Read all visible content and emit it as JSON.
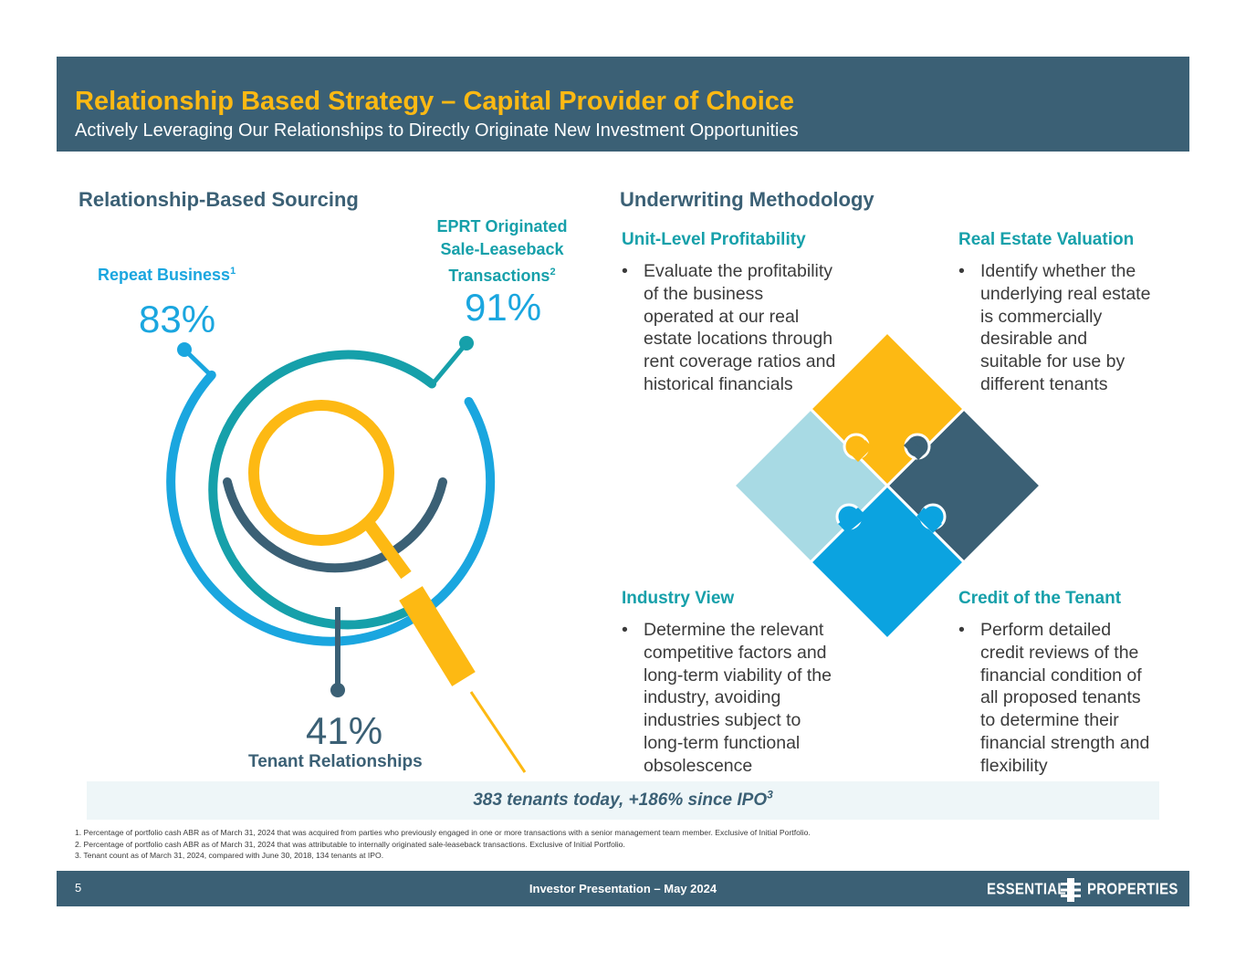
{
  "header": {
    "title": "Relationship Based Strategy – Capital Provider of Choice",
    "subtitle": "Actively Leveraging Our Relationships to Directly Originate New Investment Opportunities"
  },
  "sourcing": {
    "heading": "Relationship-Based Sourcing",
    "repeat": {
      "label": "Repeat Business",
      "sup": "1",
      "value": "83%"
    },
    "eprt": {
      "line1": "EPRT Originated",
      "line2": "Sale-Leaseback",
      "line3": "Transactions",
      "sup": "2",
      "value": "91%"
    },
    "tenant": {
      "value": "41%",
      "label": "Tenant Relationships"
    }
  },
  "underwriting": {
    "heading": "Underwriting Methodology",
    "quadrants": [
      {
        "title": "Unit-Level Profitability",
        "lines": [
          "Evaluate the profitability",
          "of the business",
          "operated at our real",
          "estate locations through",
          "rent coverage ratios and",
          "historical financials"
        ]
      },
      {
        "title": "Real Estate Valuation",
        "lines": [
          "Identify whether the",
          "underlying real estate",
          "is commercially",
          "desirable and",
          "suitable for use by",
          "different tenants"
        ]
      },
      {
        "title": "Industry View",
        "lines": [
          "Determine the relevant",
          "competitive factors and",
          "long-term viability of the",
          "industry, avoiding",
          "industries subject to",
          "long-term functional",
          "obsolescence"
        ]
      },
      {
        "title": "Credit of the Tenant",
        "lines": [
          "Perform detailed",
          "credit reviews of the",
          "financial condition of",
          "all proposed tenants",
          "to determine their",
          "financial strength and",
          "flexibility"
        ]
      }
    ]
  },
  "banner": {
    "text": "383 tenants today, +186% since IPO",
    "sup": "3"
  },
  "footnotes": [
    "1.  Percentage of portfolio cash ABR as of March 31, 2024 that was acquired from parties who previously engaged in one or more transactions with a senior management team member. Exclusive of Initial Portfolio.",
    "2.  Percentage of portfolio cash ABR as of March 31, 2024 that was attributable to internally originated sale-leaseback transactions. Exclusive of Initial Portfolio.",
    "3.  Tenant count as of March 31, 2024, compared with June 30, 2018, 134 tenants at IPO."
  ],
  "footer": {
    "page": "5",
    "center": "Investor Presentation – May 2024",
    "logo_left": "ESSENTIAL",
    "logo_right": "PROPERTIES"
  },
  "colors": {
    "navy": "#3b6075",
    "gold": "#fdb913",
    "blue": "#1aa6df",
    "teal": "#16a0aa",
    "light_blue": "#a8dae4",
    "puzzle_blue": "#0ba3e0"
  }
}
